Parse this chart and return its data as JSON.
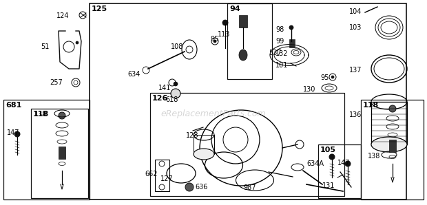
{
  "bg_color": "#ffffff",
  "fig_width": 6.2,
  "fig_height": 2.98,
  "dpi": 100,
  "watermark": "eReplacementParts.com",
  "watermark_color": "#bbbbbb",
  "watermark_alpha": 0.6
}
